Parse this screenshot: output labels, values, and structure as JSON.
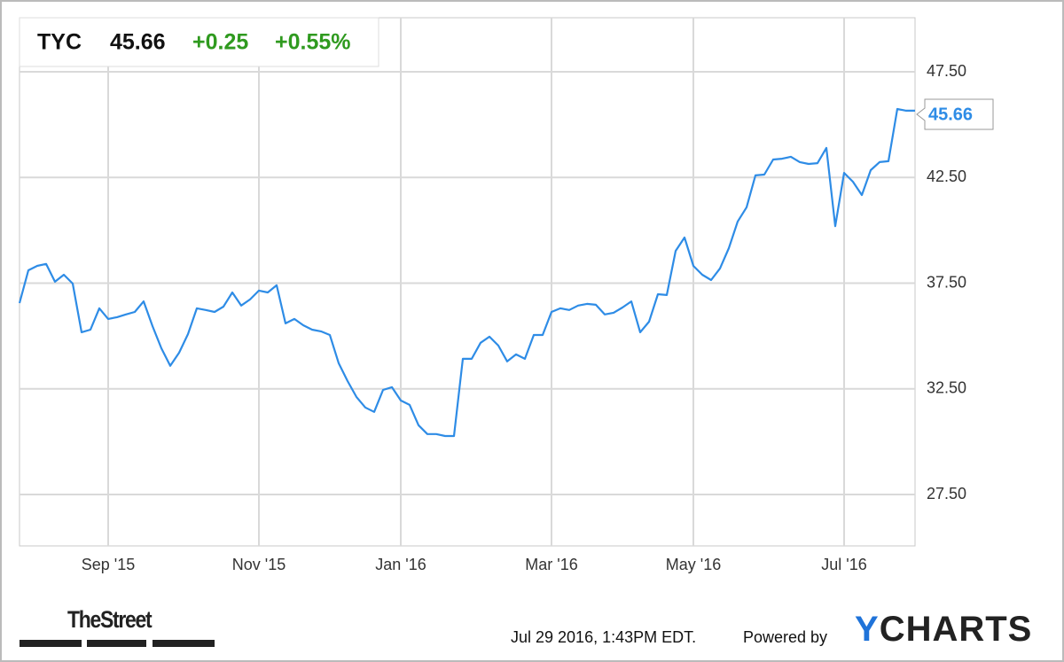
{
  "chart_data": {
    "type": "line",
    "ticker": "TYC",
    "price": "45.66",
    "change": "+0.25",
    "change_percent": "+0.55%",
    "color": "#2e8ce6",
    "grid": true,
    "categories": [
      null,
      null,
      null,
      null,
      null,
      null,
      null,
      null,
      null,
      null,
      "Sep '15",
      null,
      null,
      null,
      null,
      null,
      null,
      null,
      null,
      null,
      null,
      null,
      null,
      null,
      null,
      null,
      null,
      "Nov '15",
      null,
      null,
      null,
      null,
      null,
      null,
      null,
      null,
      null,
      null,
      null,
      null,
      null,
      null,
      null,
      "Jan '16",
      null,
      null,
      null,
      null,
      null,
      null,
      null,
      null,
      null,
      null,
      null,
      null,
      null,
      null,
      null,
      null,
      "Mar '16",
      null,
      null,
      null,
      null,
      null,
      null,
      null,
      null,
      null,
      null,
      null,
      null,
      null,
      null,
      null,
      "May '16",
      null,
      null,
      null,
      null,
      null,
      null,
      null,
      null,
      null,
      null,
      null,
      null,
      null,
      null,
      null,
      null,
      "Jul '16",
      null,
      null,
      null,
      null,
      null,
      null,
      null,
      null
    ],
    "values": [
      36.56,
      38.11,
      38.32,
      38.41,
      37.57,
      37.9,
      37.48,
      35.18,
      35.3,
      36.31,
      35.81,
      35.89,
      36.02,
      36.14,
      36.64,
      35.47,
      34.42,
      33.59,
      34.21,
      35.09,
      36.31,
      36.23,
      36.14,
      36.39,
      37.06,
      36.44,
      36.73,
      37.15,
      37.06,
      37.4,
      35.6,
      35.81,
      35.51,
      35.3,
      35.22,
      35.05,
      33.71,
      32.87,
      32.12,
      31.62,
      31.41,
      32.45,
      32.58,
      31.95,
      31.74,
      30.78,
      30.36,
      30.36,
      30.27,
      30.27,
      33.92,
      33.92,
      34.68,
      34.97,
      34.55,
      33.8,
      34.13,
      33.92,
      35.05,
      35.05,
      36.14,
      36.31,
      36.23,
      36.44,
      36.52,
      36.48,
      36.02,
      36.1,
      36.35,
      36.64,
      35.18,
      35.68,
      36.98,
      36.94,
      39.03,
      39.66,
      38.32,
      37.9,
      37.65,
      38.2,
      39.16,
      40.42,
      41.09,
      42.6,
      42.64,
      43.35,
      43.39,
      43.48,
      43.23,
      43.14,
      43.18,
      43.9,
      40.2,
      42.72,
      42.3,
      41.67,
      42.85,
      43.23,
      43.27,
      45.74,
      45.66,
      45.66
    ],
    "ylim": [
      25.07,
      50.06
    ],
    "yticks": [
      {
        "value": 27.5,
        "label": "27.50"
      },
      {
        "value": 32.5,
        "label": "32.50"
      },
      {
        "value": 37.5,
        "label": "37.50"
      },
      {
        "value": 42.5,
        "label": "42.50"
      },
      {
        "value": 47.5,
        "label": "47.50"
      }
    ],
    "source_logo": "TheStreet",
    "timestamp": "Jul 29 2016, 1:43PM EDT.",
    "powered_by": "Powered by",
    "brand": "YCHARTS"
  }
}
